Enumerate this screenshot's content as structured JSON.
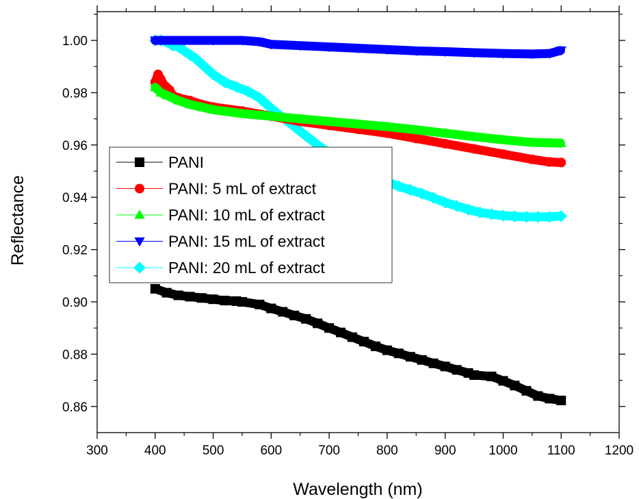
{
  "chart_data": {
    "type": "scatter",
    "xlabel": "Wavelength (nm)",
    "ylabel": "Reflectance",
    "xlim": [
      300,
      1200
    ],
    "ylim": [
      0.85,
      1.011
    ],
    "xticks": [
      300,
      400,
      500,
      600,
      700,
      800,
      900,
      1000,
      1100,
      1200
    ],
    "yticks": [
      0.86,
      0.88,
      0.9,
      0.92,
      0.94,
      0.96,
      0.98,
      1.0
    ],
    "xtick_labels": [
      "300",
      "400",
      "500",
      "600",
      "700",
      "800",
      "900",
      "1000",
      "1100",
      "1200"
    ],
    "ytick_labels": [
      "0.86",
      "0.88",
      "0.90",
      "0.92",
      "0.94",
      "0.96",
      "0.98",
      "1.00"
    ],
    "legend_position": "left",
    "series": [
      {
        "name": "PANI",
        "color": "#000000",
        "marker": "square",
        "x": [
          400,
          420,
          440,
          460,
          480,
          500,
          520,
          540,
          550,
          580,
          600,
          620,
          640,
          660,
          680,
          700,
          720,
          740,
          760,
          780,
          800,
          820,
          840,
          860,
          880,
          900,
          920,
          940,
          950,
          980,
          1000,
          1020,
          1040,
          1060,
          1080,
          1100
        ],
        "y": [
          0.905,
          0.9035,
          0.9025,
          0.902,
          0.9015,
          0.901,
          0.9005,
          0.9003,
          0.9,
          0.899,
          0.8975,
          0.8962,
          0.8948,
          0.8935,
          0.8918,
          0.89,
          0.8883,
          0.8865,
          0.8848,
          0.883,
          0.8815,
          0.8803,
          0.879,
          0.8778,
          0.8765,
          0.8753,
          0.874,
          0.8728,
          0.872,
          0.8715,
          0.8698,
          0.868,
          0.866,
          0.864,
          0.863,
          0.8623
        ]
      },
      {
        "name": "PANI: 5 mL of extract",
        "color": "#ff0000",
        "marker": "circle",
        "x": [
          400,
          405,
          410,
          415,
          420,
          425,
          430,
          440,
          460,
          480,
          500,
          550,
          600,
          650,
          700,
          750,
          800,
          850,
          900,
          950,
          1000,
          1050,
          1080,
          1100
        ],
        "y": [
          0.984,
          0.987,
          0.985,
          0.983,
          0.982,
          0.981,
          0.979,
          0.978,
          0.977,
          0.9755,
          0.9745,
          0.973,
          0.971,
          0.969,
          0.9675,
          0.966,
          0.9645,
          0.9625,
          0.9605,
          0.9585,
          0.9565,
          0.9545,
          0.9535,
          0.9533
        ]
      },
      {
        "name": "PANI: 10 mL of extract",
        "color": "#00ff00",
        "marker": "triangle-up",
        "x": [
          400,
          410,
          420,
          440,
          460,
          480,
          500,
          550,
          600,
          650,
          700,
          750,
          800,
          850,
          900,
          950,
          1000,
          1050,
          1100
        ],
        "y": [
          0.982,
          0.98,
          0.979,
          0.977,
          0.9755,
          0.9745,
          0.9735,
          0.972,
          0.971,
          0.97,
          0.969,
          0.968,
          0.967,
          0.9658,
          0.9645,
          0.9632,
          0.962,
          0.961,
          0.9607
        ]
      },
      {
        "name": "PANI: 15 mL of extract",
        "color": "#0000ff",
        "marker": "triangle-down",
        "x": [
          400,
          450,
          500,
          550,
          580,
          600,
          650,
          700,
          750,
          800,
          850,
          900,
          950,
          1000,
          1050,
          1080,
          1100
        ],
        "y": [
          1.0,
          1.0,
          1.0,
          1.0,
          0.9995,
          0.9985,
          0.998,
          0.9975,
          0.997,
          0.9965,
          0.996,
          0.9957,
          0.9953,
          0.995,
          0.9948,
          0.995,
          0.9962
        ]
      },
      {
        "name": "PANI: 20 mL of extract",
        "color": "#00ffff",
        "marker": "diamond",
        "x": [
          400,
          410,
          420,
          430,
          440,
          450,
          460,
          470,
          480,
          500,
          520,
          540,
          560,
          580,
          600,
          620,
          640,
          660,
          680,
          700,
          720,
          740,
          760,
          780,
          800,
          820,
          840,
          860,
          880,
          900,
          920,
          940,
          960,
          980,
          1000,
          1020,
          1040,
          1060,
          1080,
          1100
        ],
        "y": [
          1.0,
          1.0,
          0.9995,
          0.998,
          0.9975,
          0.996,
          0.9945,
          0.993,
          0.991,
          0.987,
          0.984,
          0.9822,
          0.9805,
          0.978,
          0.974,
          0.9705,
          0.967,
          0.9635,
          0.96,
          0.957,
          0.9545,
          0.952,
          0.9498,
          0.9478,
          0.9458,
          0.9442,
          0.9428,
          0.9414,
          0.9398,
          0.938,
          0.9367,
          0.9353,
          0.9342,
          0.9335,
          0.933,
          0.9327,
          0.9325,
          0.9325,
          0.9325,
          0.9328
        ]
      }
    ]
  }
}
